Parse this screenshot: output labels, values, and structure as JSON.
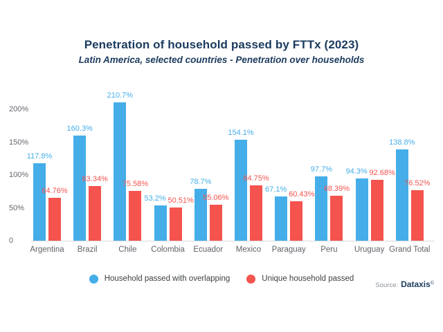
{
  "chart_data": {
    "type": "bar",
    "title": "Penetration of household passed by FTTx (2023)",
    "subtitle": "Latin America, selected countries - Penetration over households",
    "categories": [
      "Argentina",
      "Brazil",
      "Chile",
      "Colombia",
      "Ecuador",
      "Mexico",
      "Paraguay",
      "Peru",
      "Uruguay",
      "Grand Total"
    ],
    "series": [
      {
        "name": "Household passed with overlapping",
        "color": "#45AEE9",
        "values": [
          117.8,
          160.3,
          210.7,
          53.2,
          78.7,
          154.1,
          67.1,
          97.7,
          94.3,
          138.8
        ],
        "labels": [
          "117.8%",
          "160.3%",
          "210.7%",
          "53.2%",
          "78.7%",
          "154.1%",
          "67.1%",
          "97.7%",
          "94.3%",
          "138.8%"
        ]
      },
      {
        "name": "Unique household passed",
        "color": "#F4534E",
        "values": [
          64.76,
          83.34,
          75.58,
          50.51,
          55.06,
          84.75,
          60.43,
          68.39,
          92.68,
          76.52
        ],
        "labels": [
          "64.76%",
          "83.34%",
          "75.58%",
          "50.51%",
          "55.06%",
          "84.75%",
          "60.43%",
          "68.39%",
          "92.68%",
          "76.52%"
        ]
      }
    ],
    "yticks": [
      {
        "value": 0,
        "label": "0"
      },
      {
        "value": 50,
        "label": "50%"
      },
      {
        "value": 100,
        "label": "100%"
      },
      {
        "value": 150,
        "label": "150%"
      },
      {
        "value": 200,
        "label": "200%"
      }
    ],
    "ylim": [
      0,
      215
    ],
    "xlabel": "",
    "ylabel": "",
    "grid": false,
    "legend_position": "bottom"
  },
  "source": {
    "prefix": "Source:",
    "name": "Dataxis",
    "mark": "©"
  },
  "colors": {
    "title_navy": "#1b3a5e",
    "series_blue": "#45AEE9",
    "series_red": "#F4534E",
    "axis_text": "#63676d",
    "baseline": "#d9dbe0"
  }
}
